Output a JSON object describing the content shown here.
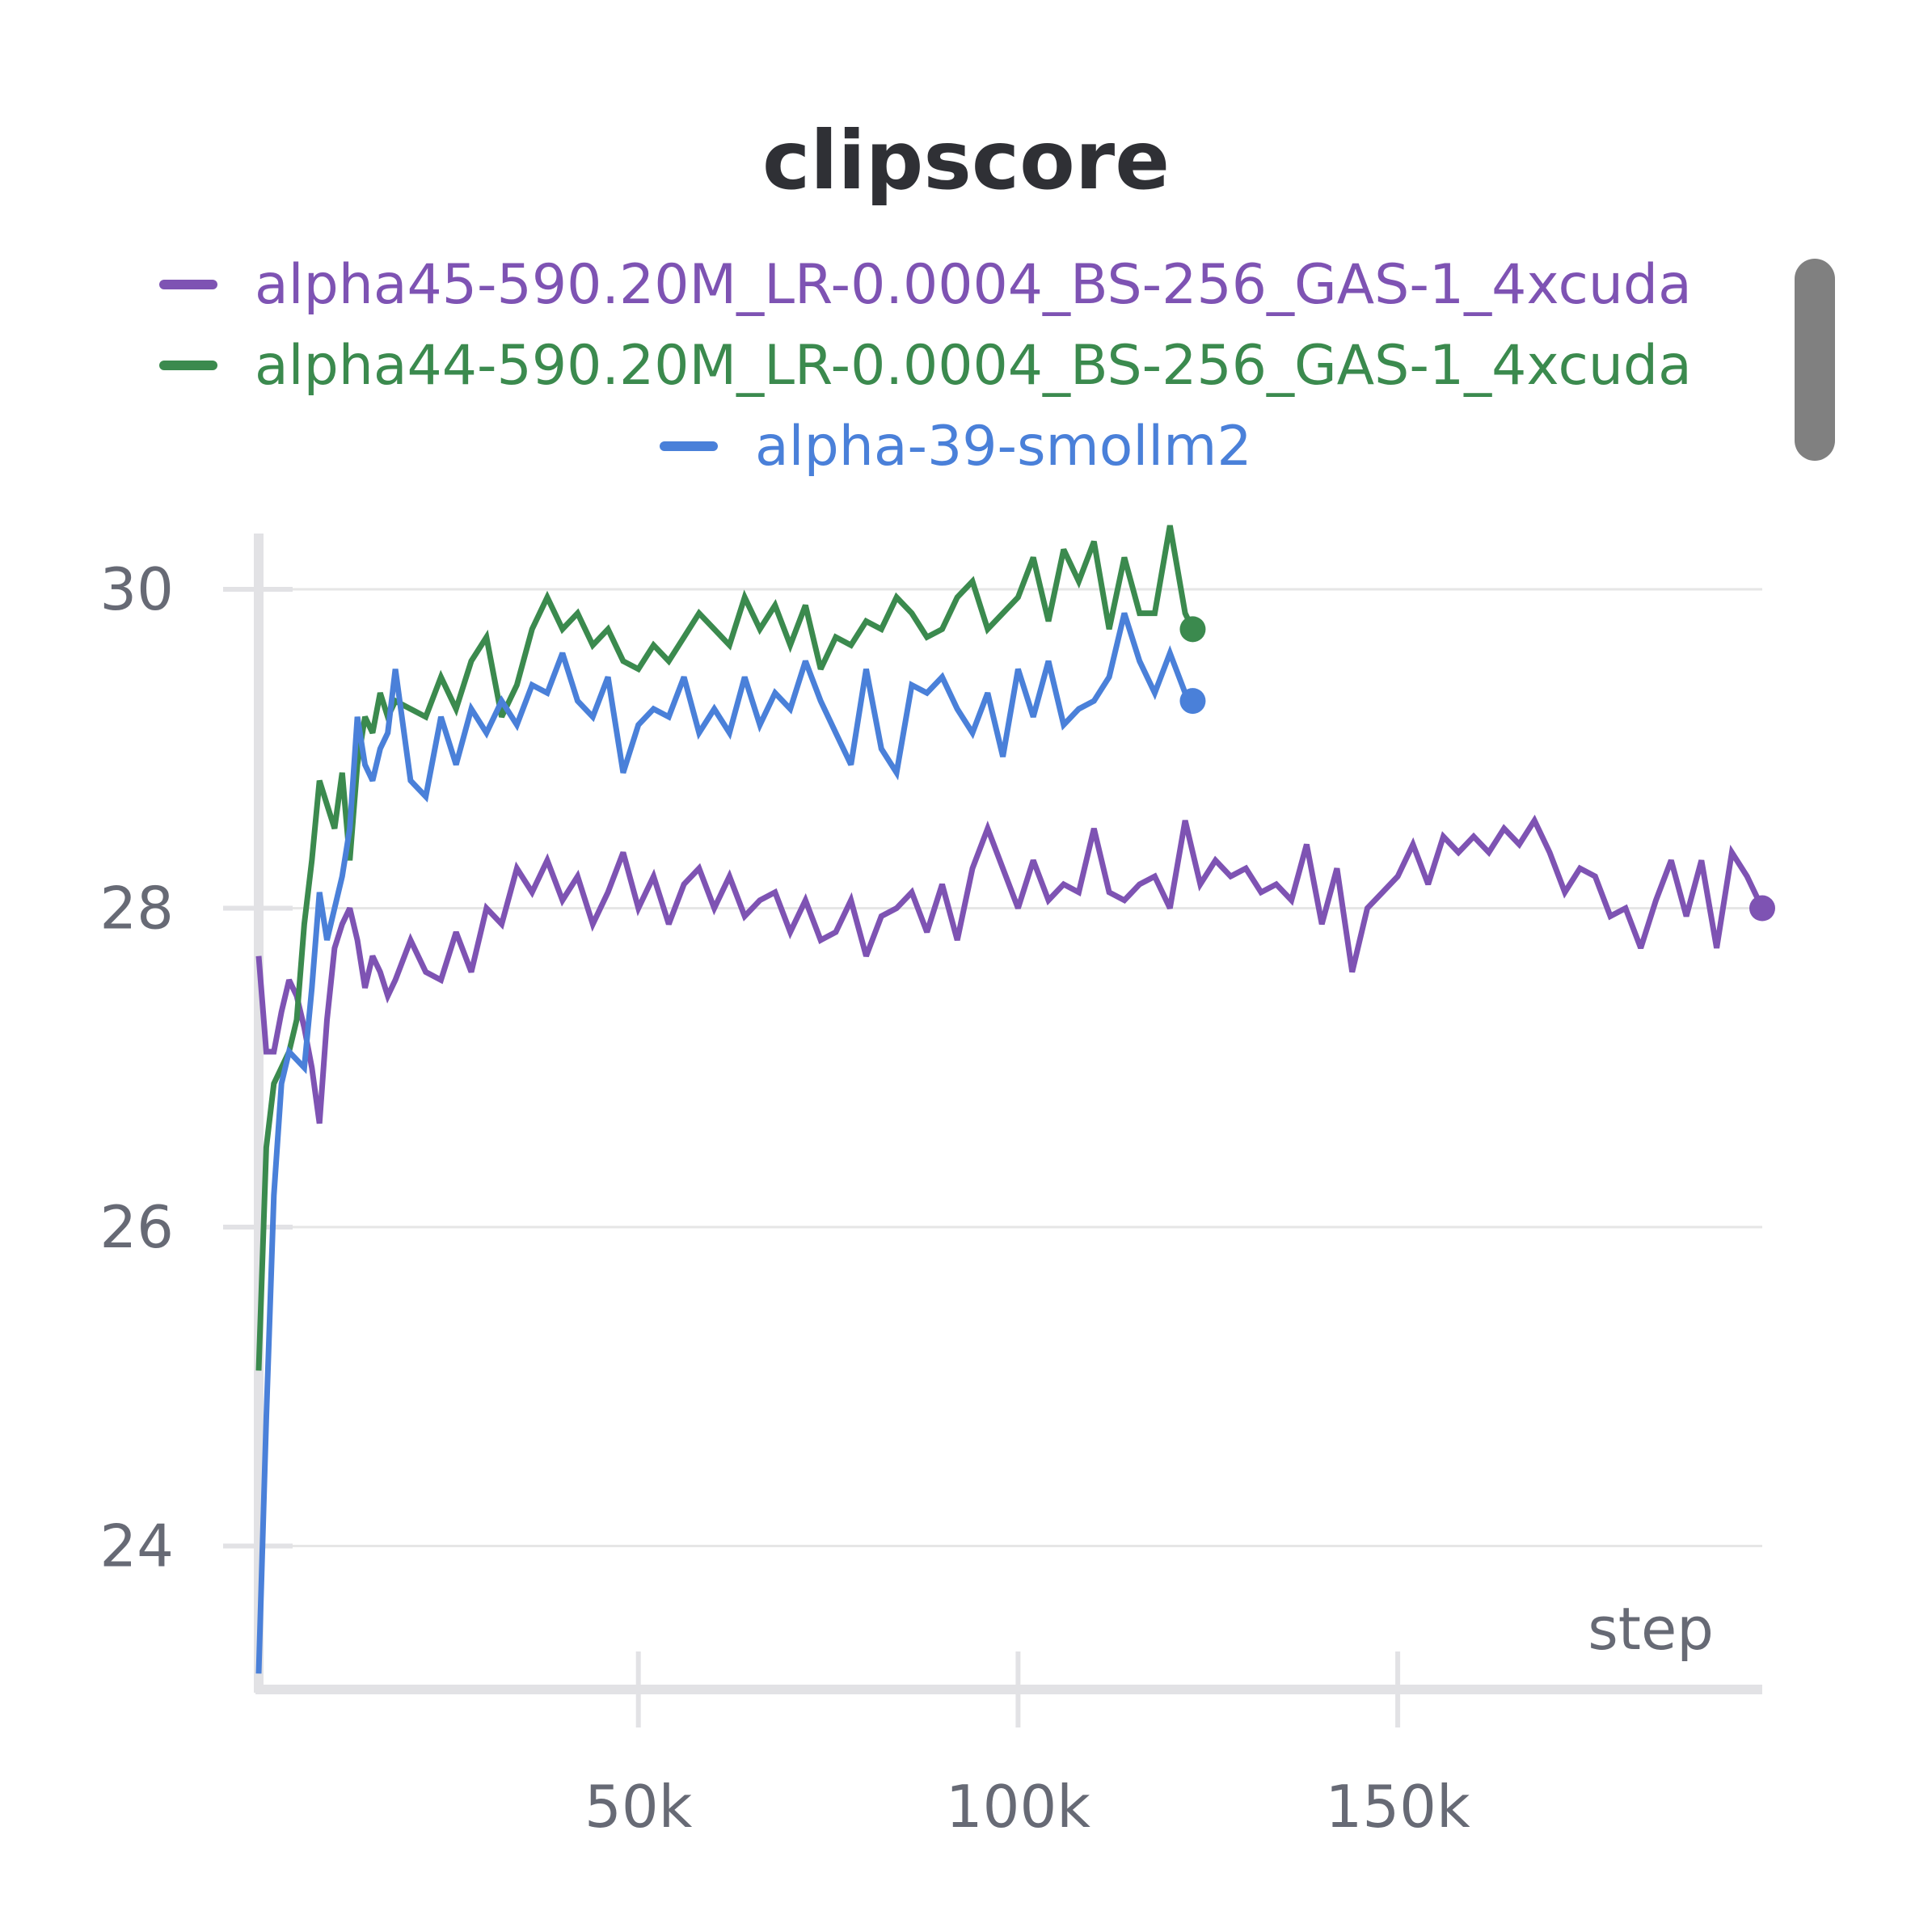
{
  "title": "clipscore",
  "colors": {
    "grid": "#e6e6e6",
    "axis": "#e2e2e5",
    "tick_text": "#676a75",
    "title": "#2f3035"
  },
  "legend": [
    {
      "label": "alpha45-590.20M_LR-0.0004_BS-256_GAS-1_4xcuda",
      "color": "#7e53b3"
    },
    {
      "label": "alpha44-590.20M_LR-0.0004_BS-256_GAS-1_4xcuda",
      "color": "#3b8a4e"
    },
    {
      "label": "alpha-39-smollm2",
      "color": "#4a80d9"
    }
  ],
  "chart_data": {
    "type": "line",
    "title": "clipscore",
    "xlabel": "step",
    "ylabel": "",
    "xlim": [
      0,
      198000
    ],
    "ylim": [
      23.1,
      30.35
    ],
    "xticks": [
      50000,
      100000,
      150000
    ],
    "xtick_labels": [
      "50k",
      "100k",
      "150k"
    ],
    "yticks": [
      24,
      26,
      28,
      30
    ],
    "ytick_labels": [
      "24",
      "26",
      "28",
      "30"
    ],
    "grid": true,
    "legend_position": "top",
    "series": [
      {
        "name": "alpha45-590.20M_LR-0.0004_BS-256_GAS-1_4xcuda",
        "color": "#7e53b3",
        "end_marker": true,
        "x": [
          0,
          1000,
          2000,
          3000,
          4000,
          5000,
          6000,
          7000,
          8000,
          9000,
          10000,
          11000,
          12000,
          13000,
          14000,
          15000,
          16000,
          17000,
          18000,
          20000,
          22000,
          24000,
          26000,
          28000,
          30000,
          32000,
          34000,
          36000,
          38000,
          40000,
          42000,
          44000,
          46000,
          48000,
          50000,
          52000,
          54000,
          56000,
          58000,
          60000,
          62000,
          64000,
          66000,
          68000,
          70000,
          72000,
          74000,
          76000,
          78000,
          80000,
          82000,
          84000,
          86000,
          88000,
          90000,
          92000,
          94000,
          96000,
          98000,
          100000,
          102000,
          104000,
          106000,
          108000,
          110000,
          112000,
          114000,
          116000,
          118000,
          120000,
          122000,
          124000,
          126000,
          128000,
          130000,
          132000,
          134000,
          136000,
          138000,
          140000,
          142000,
          144000,
          146000,
          148000,
          150000,
          152000,
          154000,
          156000,
          158000,
          160000,
          162000,
          164000,
          166000,
          168000,
          170000,
          172000,
          174000,
          176000,
          178000,
          180000,
          182000,
          184000,
          186000,
          188000,
          190000,
          192000,
          194000,
          196000,
          198000
        ],
        "y": [
          27.7,
          27.1,
          27.1,
          27.35,
          27.55,
          27.45,
          27.25,
          27.0,
          26.65,
          27.3,
          27.75,
          27.9,
          28.0,
          27.8,
          27.5,
          27.7,
          27.6,
          27.45,
          27.55,
          27.8,
          27.6,
          27.55,
          27.85,
          27.6,
          28.0,
          27.9,
          28.25,
          28.1,
          28.3,
          28.05,
          28.2,
          27.9,
          28.1,
          28.35,
          28.0,
          28.2,
          27.9,
          28.15,
          28.25,
          28.0,
          28.2,
          27.95,
          28.05,
          28.1,
          27.85,
          28.05,
          27.8,
          27.85,
          28.05,
          27.7,
          27.95,
          28.0,
          28.1,
          27.85,
          28.15,
          27.8,
          28.25,
          28.5,
          28.25,
          28.0,
          28.3,
          28.05,
          28.15,
          28.1,
          28.5,
          28.1,
          28.05,
          28.15,
          28.2,
          28.0,
          28.55,
          28.15,
          28.3,
          28.2,
          28.25,
          28.1,
          28.15,
          28.05,
          28.4,
          27.9,
          28.25,
          27.6,
          28.0,
          28.1,
          28.2,
          28.4,
          28.15,
          28.45,
          28.35,
          28.45,
          28.35,
          28.5,
          28.4,
          28.55,
          28.35,
          28.1,
          28.25,
          28.2,
          27.95,
          28.0,
          27.75,
          28.05,
          28.3,
          27.95,
          28.3,
          27.75,
          28.35,
          28.2,
          28.0
        ]
      },
      {
        "name": "alpha44-590.20M_LR-0.0004_BS-256_GAS-1_4xcuda",
        "color": "#3b8a4e",
        "end_marker": true,
        "x": [
          0,
          1000,
          2000,
          3000,
          4000,
          5000,
          6000,
          7000,
          8000,
          9000,
          10000,
          11000,
          12000,
          13000,
          14000,
          15000,
          16000,
          17000,
          18000,
          20000,
          22000,
          24000,
          26000,
          28000,
          30000,
          32000,
          34000,
          36000,
          38000,
          40000,
          42000,
          44000,
          46000,
          48000,
          50000,
          52000,
          54000,
          56000,
          58000,
          60000,
          62000,
          64000,
          66000,
          68000,
          70000,
          72000,
          74000,
          76000,
          78000,
          80000,
          82000,
          84000,
          86000,
          88000,
          90000,
          92000,
          94000,
          96000,
          98000,
          100000,
          102000,
          104000,
          106000,
          108000,
          110000,
          112000,
          114000,
          116000,
          118000,
          120000,
          122000,
          123000
        ],
        "y": [
          25.1,
          26.5,
          26.9,
          27.0,
          27.1,
          27.3,
          27.9,
          28.3,
          28.8,
          28.65,
          28.5,
          28.85,
          28.3,
          28.9,
          29.2,
          29.1,
          29.35,
          29.2,
          29.3,
          29.25,
          29.2,
          29.45,
          29.25,
          29.55,
          29.7,
          29.2,
          29.4,
          29.75,
          29.95,
          29.75,
          29.85,
          29.65,
          29.75,
          29.55,
          29.5,
          29.65,
          29.55,
          29.7,
          29.85,
          29.75,
          29.65,
          29.95,
          29.75,
          29.9,
          29.65,
          29.9,
          29.5,
          29.7,
          29.65,
          29.8,
          29.75,
          29.95,
          29.85,
          29.7,
          29.75,
          29.95,
          30.05,
          29.75,
          29.85,
          29.95,
          30.2,
          29.8,
          30.25,
          30.05,
          30.3,
          29.75,
          30.2,
          29.85,
          29.85,
          30.4,
          29.85,
          29.75
        ]
      },
      {
        "name": "alpha-39-smollm2",
        "color": "#4a80d9",
        "end_marker": true,
        "x": [
          0,
          1000,
          2000,
          3000,
          4000,
          5000,
          6000,
          7000,
          8000,
          9000,
          10000,
          11000,
          12000,
          13000,
          14000,
          15000,
          16000,
          17000,
          18000,
          20000,
          22000,
          24000,
          26000,
          28000,
          30000,
          32000,
          34000,
          36000,
          38000,
          40000,
          42000,
          44000,
          46000,
          48000,
          50000,
          52000,
          54000,
          56000,
          58000,
          60000,
          62000,
          64000,
          66000,
          68000,
          70000,
          72000,
          74000,
          76000,
          78000,
          80000,
          82000,
          84000,
          86000,
          88000,
          90000,
          92000,
          94000,
          96000,
          98000,
          100000,
          102000,
          104000,
          106000,
          108000,
          110000,
          112000,
          114000,
          116000,
          118000,
          120000,
          122000,
          123000
        ],
        "y": [
          23.2,
          24.8,
          26.2,
          26.9,
          27.1,
          27.05,
          27.0,
          27.5,
          28.1,
          27.8,
          28.0,
          28.2,
          28.5,
          29.2,
          28.9,
          28.8,
          29.0,
          29.1,
          29.5,
          28.8,
          28.7,
          29.2,
          28.9,
          29.25,
          29.1,
          29.3,
          29.15,
          29.4,
          29.35,
          29.6,
          29.3,
          29.2,
          29.45,
          28.85,
          29.15,
          29.25,
          29.2,
          29.45,
          29.1,
          29.25,
          29.1,
          29.45,
          29.15,
          29.35,
          29.25,
          29.55,
          29.3,
          29.1,
          28.9,
          29.5,
          29.0,
          28.85,
          29.4,
          29.35,
          29.45,
          29.25,
          29.1,
          29.35,
          28.95,
          29.5,
          29.2,
          29.55,
          29.15,
          29.25,
          29.3,
          29.45,
          29.85,
          29.55,
          29.35,
          29.6,
          29.35,
          29.3
        ]
      }
    ]
  }
}
